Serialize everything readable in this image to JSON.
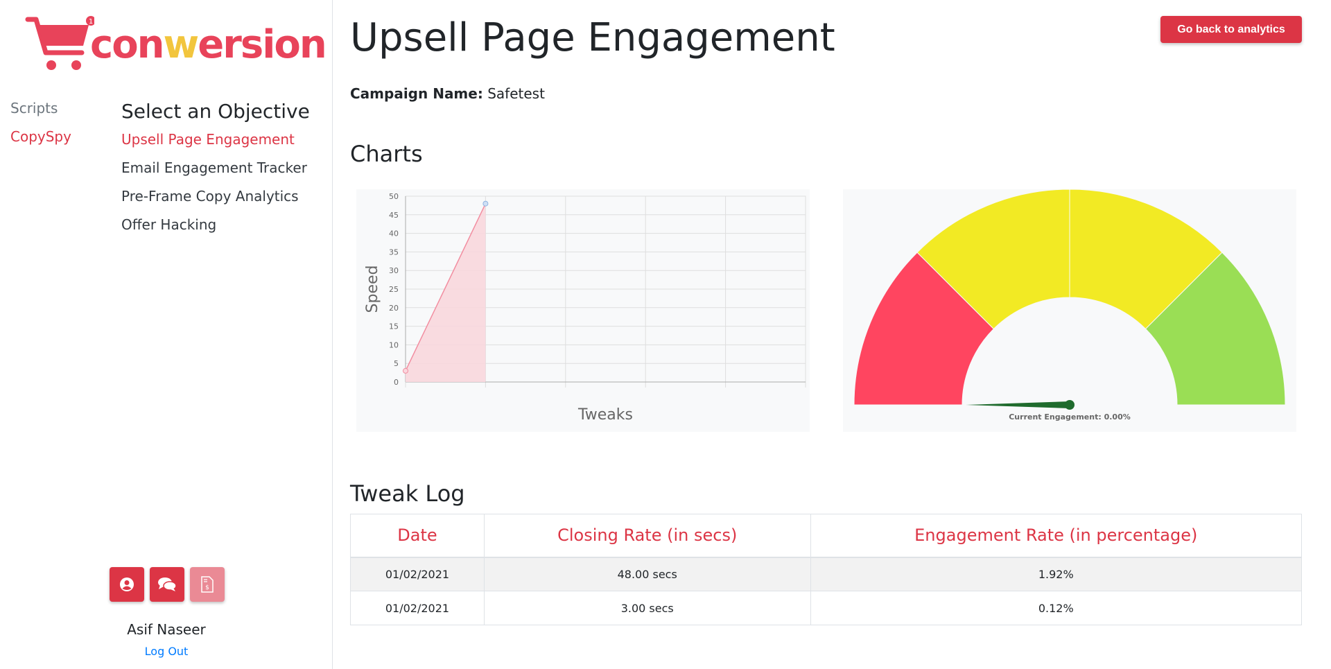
{
  "brand": {
    "badge": "1",
    "logo_text_pre": "con",
    "logo_text_w": "w",
    "logo_text_post": "ersion",
    "colors": {
      "primary": "#dc3545",
      "logo_red": "#e8435a",
      "logo_yellow": "#f2c53d"
    }
  },
  "sidebar": {
    "nav": [
      {
        "label": "Scripts",
        "active": false
      },
      {
        "label": "CopySpy",
        "active": true
      }
    ],
    "objectives_title": "Select an Objective",
    "objectives": [
      {
        "label": "Upsell Page Engagement",
        "active": true
      },
      {
        "label": "Email Engagement Tracker",
        "active": false
      },
      {
        "label": "Pre-Frame Copy Analytics",
        "active": false
      },
      {
        "label": "Offer Hacking",
        "active": false
      }
    ],
    "user_buttons": [
      "user-circle-icon",
      "comments-icon",
      "invoice-dollar-icon"
    ],
    "user_name": "Asif Naseer",
    "logout": "Log Out"
  },
  "main": {
    "title": "Upsell Page Engagement",
    "back_button": "Go back to analytics",
    "campaign_label": "Campaign Name:",
    "campaign_value": "Safetest",
    "charts_heading": "Charts",
    "tweak_heading": "Tweak Log",
    "table": {
      "headers": [
        "Date",
        "Closing Rate (in secs)",
        "Engagement Rate (in percentage)"
      ],
      "rows": [
        [
          "01/02/2021",
          "48.00 secs",
          "1.92%"
        ],
        [
          "01/02/2021",
          "3.00 secs",
          "0.12%"
        ]
      ]
    }
  },
  "chart_data": [
    {
      "type": "area",
      "x": [
        0,
        1
      ],
      "values": [
        3,
        48
      ],
      "xlabel": "Tweaks",
      "ylabel": "Speed",
      "ylim": [
        0,
        50
      ],
      "yticks": [
        0,
        5,
        10,
        15,
        20,
        25,
        30,
        35,
        40,
        45,
        50
      ],
      "x_gridlines": 5,
      "grid": true,
      "fill_color": "#f8d7dd",
      "line_color": "#f28da0"
    },
    {
      "type": "gauge",
      "segments": [
        {
          "color": "#ff4560",
          "from": 0,
          "to": 0.25
        },
        {
          "color": "#f2ea24",
          "from": 0.25,
          "to": 0.5
        },
        {
          "color": "#f2ea24",
          "from": 0.5,
          "to": 0.75
        },
        {
          "color": "#9ade55",
          "from": 0.75,
          "to": 1.0
        }
      ],
      "value": 0.0,
      "needle_color": "#1f6b2d",
      "label": "Current Engagement: 0.00%"
    }
  ]
}
